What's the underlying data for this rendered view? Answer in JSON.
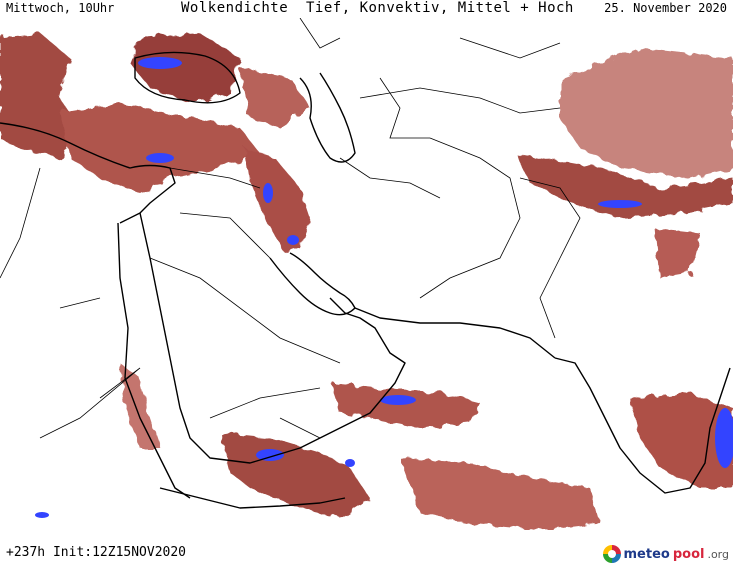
{
  "header": {
    "left": "Mittwoch, 10Uhr",
    "title": "Wolkendichte  Tief, Konvektiv, Mittel + Hoch",
    "date": "25. November 2020"
  },
  "footer": {
    "run": "+237h Init:12Z15NOV2020",
    "logo_part1": "meteo",
    "logo_part2": "pool",
    "logo_part3": ".org"
  },
  "colors": {
    "cloud": "#9b3a32",
    "cloud_light": "#c97a72",
    "convective": "#3344ff",
    "border": "#000000"
  }
}
